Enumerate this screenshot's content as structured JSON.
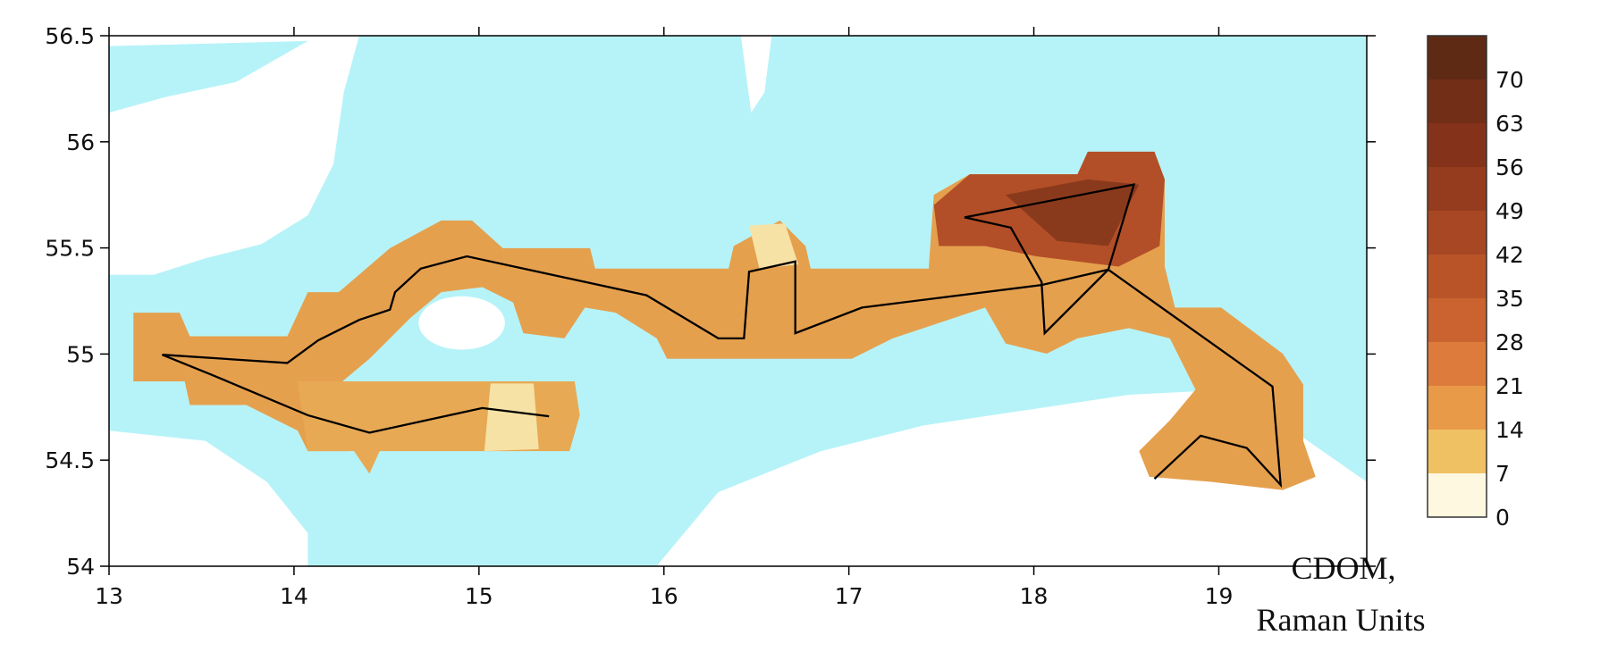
{
  "map": {
    "xlim": [
      13,
      19.8
    ],
    "ylim": [
      54,
      56.5
    ],
    "xticks": [
      13,
      14,
      15,
      16,
      17,
      18,
      19
    ],
    "yticks": [
      54,
      54.5,
      55,
      55.5,
      56,
      56.5
    ],
    "colorbar": {
      "clim": [
        0,
        77
      ],
      "ticks": [
        0,
        7,
        14,
        21,
        28,
        35,
        42,
        49,
        56,
        63,
        70
      ],
      "colors": [
        "#fdf8df",
        "#f0c162",
        "#e89a48",
        "#dc7b3b",
        "#ca6330",
        "#b95429",
        "#a84723",
        "#963c1e",
        "#84331a",
        "#722e17",
        "#5f2a14"
      ],
      "title": [
        "CDOM,",
        "Raman Units"
      ]
    }
  }
}
